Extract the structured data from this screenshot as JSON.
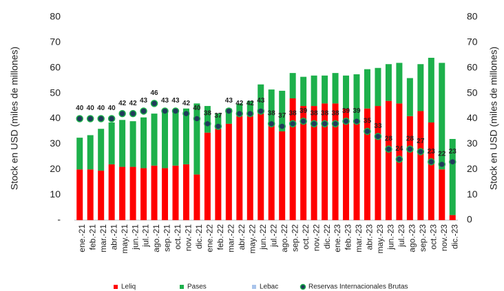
{
  "chart_data": {
    "type": "bar",
    "categories": [
      "ene.-21",
      "feb.-21",
      "mar.-21",
      "abr.-21",
      "may.-21",
      "jun.-21",
      "jul.-21",
      "ago.-21",
      "sep.-21",
      "oct.-21",
      "nov.-21",
      "dic.-21",
      "ene.-22",
      "feb.-22",
      "mar.-22",
      "abr.-22",
      "may.-22",
      "jun.-22",
      "jul.-22",
      "ago.-22",
      "sep.-22",
      "oct.-22",
      "nov.-22",
      "dic.-22",
      "ene.-23",
      "feb.-23",
      "mar.-23",
      "abr.-23",
      "may.-23",
      "jun.-23",
      "jul.-23",
      "ago.-23",
      "sep.-23",
      "oct.-23",
      "nov.-23",
      "dic.-23"
    ],
    "series": [
      {
        "name": "Leliq",
        "color": "#ff0000",
        "values": [
          20,
          20,
          19.5,
          22,
          21,
          21,
          20.5,
          21.5,
          20.5,
          21.5,
          22,
          18,
          34.5,
          36,
          38,
          41,
          41,
          42,
          38,
          35,
          48,
          45,
          45,
          46,
          46,
          44,
          39,
          44,
          45,
          47,
          46,
          41,
          43,
          38.5,
          20,
          2
        ]
      },
      {
        "name": "Pases",
        "color": "#1db04b",
        "values": [
          12.5,
          13.5,
          16.5,
          16.5,
          18.5,
          18,
          20,
          20.5,
          22.5,
          21.5,
          22,
          28,
          10.5,
          6,
          6,
          5,
          6,
          11.5,
          13.5,
          16,
          10,
          11.5,
          12,
          11,
          12,
          13,
          18.5,
          15.5,
          15,
          14.5,
          16,
          15,
          18.5,
          25.5,
          42,
          30
        ]
      },
      {
        "name": "Lebac",
        "color": "#a9c4eb",
        "values": [
          0,
          0,
          0,
          0,
          0,
          0,
          0,
          0,
          0,
          0,
          0,
          0,
          0,
          0,
          0,
          0,
          0,
          0,
          0,
          0,
          0,
          0,
          0,
          0,
          0,
          0,
          0,
          0,
          0,
          0,
          0,
          0,
          0,
          0,
          0,
          0
        ]
      },
      {
        "name": "Reservas Internacionales Brutas",
        "color": "#1f3b5a",
        "type": "scatter",
        "values": [
          40,
          40,
          40,
          40,
          42,
          42,
          43,
          46,
          43,
          43,
          42,
          40,
          38,
          37,
          43,
          42,
          42,
          43,
          38,
          37,
          38,
          39,
          38,
          38,
          38,
          39,
          39,
          35,
          33,
          28,
          24,
          28,
          27,
          23,
          22,
          23
        ]
      }
    ],
    "y_label": "Stock en USD (miles de millones)",
    "y2_label": "Stock en USD (miles de millones)",
    "ylim": [
      0,
      80
    ],
    "yticks": [
      {
        "value": 0,
        "label": "-"
      },
      10,
      20,
      30,
      40,
      50,
      60,
      70,
      80
    ],
    "y2lim": [
      0,
      80
    ],
    "y2ticks": [
      0,
      10,
      20,
      30,
      40,
      50,
      60,
      70,
      80
    ],
    "legend": "bottom"
  }
}
